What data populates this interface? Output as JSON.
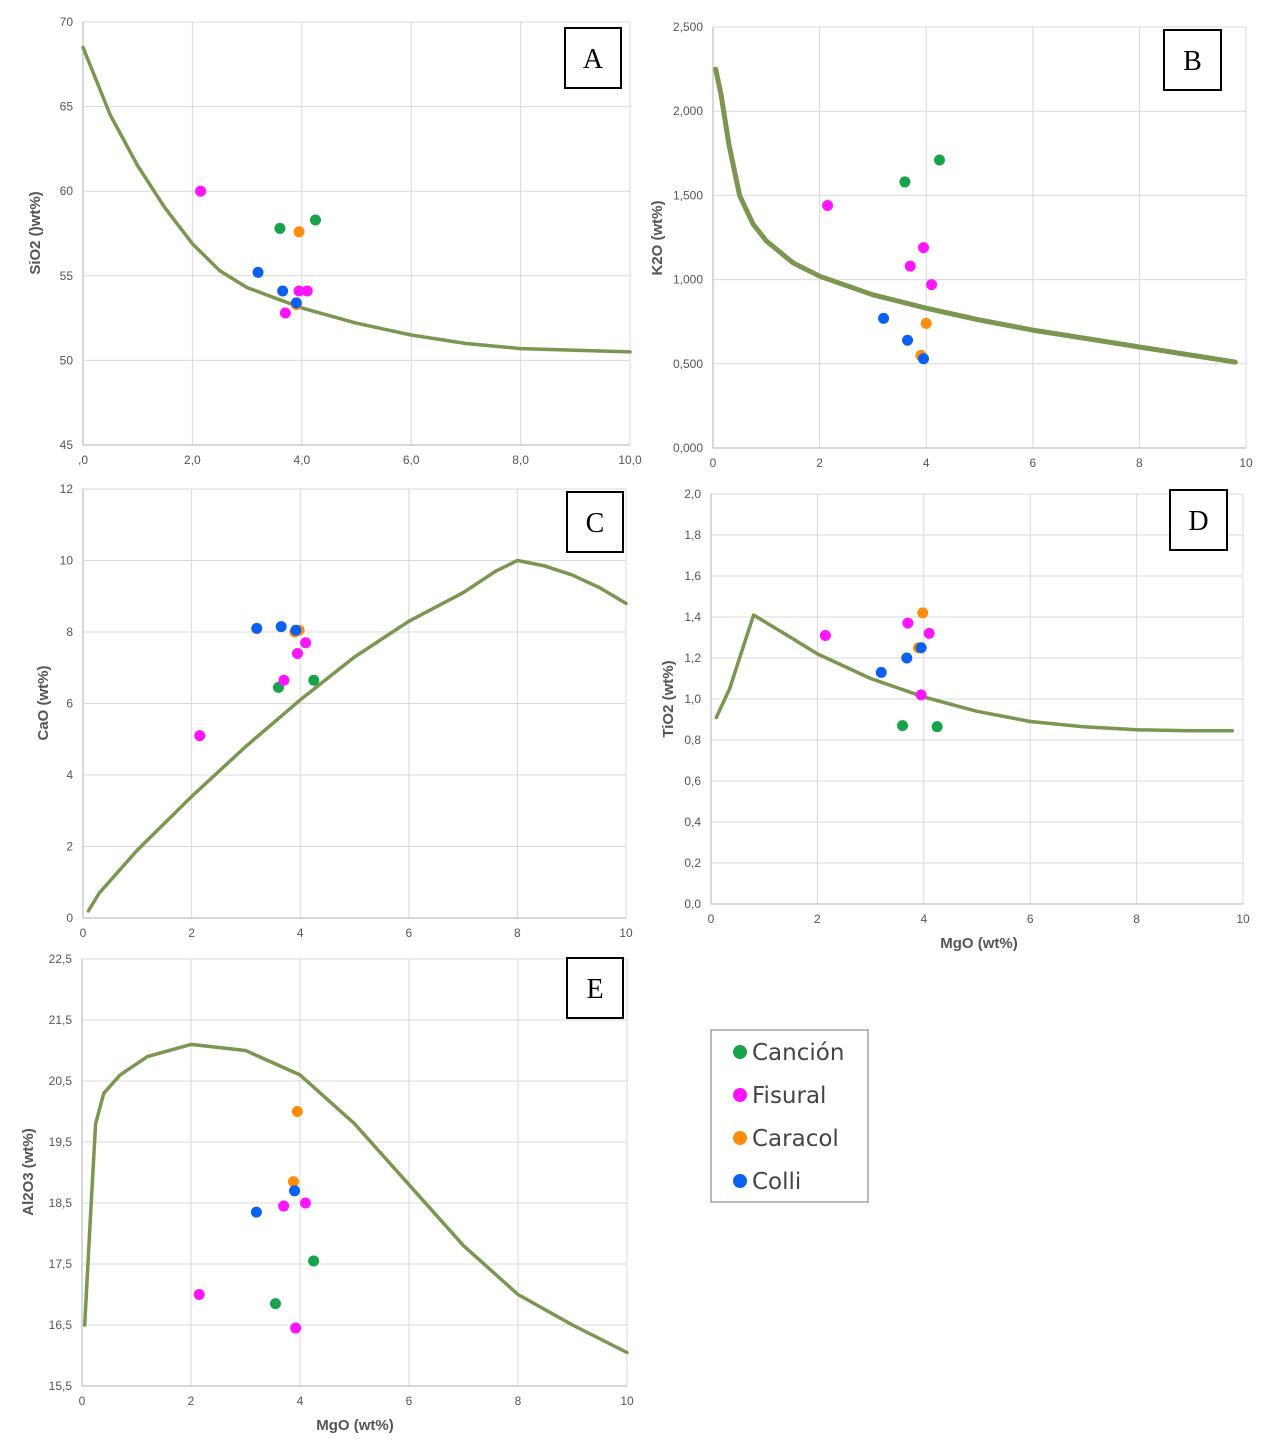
{
  "colors": {
    "curve": "#7a9650",
    "grid": "#d9d9d9",
    "axis": "#bfbfbf",
    "Canción": "#16a34a",
    "Fisural": "#ff14ff",
    "Caracol": "#ff8c0a",
    "Colli": "#0a60f0"
  },
  "legend": {
    "items": [
      "Canción",
      "Fisural",
      "Caracol",
      "Colli"
    ],
    "placement": "right of panel E"
  },
  "chart_data": [
    {
      "id": "A",
      "label": "A",
      "type": "scatter+line",
      "xlabel": "",
      "ylabel": "SiO2 ()wt%)",
      "xlim": [
        0,
        10
      ],
      "ylim": [
        45,
        70
      ],
      "xticks": [
        0,
        2,
        4,
        6,
        8,
        10
      ],
      "xtick_labels": [
        ",0",
        "2,0",
        "4,0",
        "6,0",
        "8,0",
        "10,0"
      ],
      "yticks": [
        45,
        50,
        55,
        60,
        65,
        70
      ],
      "ytick_labels": [
        "45",
        "50",
        "55",
        "60",
        "65",
        "70"
      ],
      "grid": true,
      "curve": [
        [
          0,
          68.5
        ],
        [
          0.5,
          64.5
        ],
        [
          1,
          61.5
        ],
        [
          1.5,
          59
        ],
        [
          2,
          56.9
        ],
        [
          2.5,
          55.3
        ],
        [
          3,
          54.3
        ],
        [
          3.5,
          53.7
        ],
        [
          4,
          53.1
        ],
        [
          5,
          52.2
        ],
        [
          6,
          51.5
        ],
        [
          7,
          51
        ],
        [
          8,
          50.7
        ],
        [
          9,
          50.6
        ],
        [
          10,
          50.5
        ]
      ],
      "series": [
        {
          "name": "Canción",
          "x": [
            3.6,
            4.25
          ],
          "y": [
            57.8,
            58.3
          ]
        },
        {
          "name": "Fisural",
          "x": [
            2.15,
            3.7,
            3.95,
            4.1
          ],
          "y": [
            60,
            52.8,
            54.1,
            54.1
          ]
        },
        {
          "name": "Caracol",
          "x": [
            3.9,
            3.95
          ],
          "y": [
            53.3,
            57.6
          ]
        },
        {
          "name": "Colli",
          "x": [
            3.2,
            3.65,
            3.9
          ],
          "y": [
            55.2,
            54.1,
            53.4
          ]
        }
      ]
    },
    {
      "id": "B",
      "label": "B",
      "type": "scatter+line",
      "xlabel": "",
      "ylabel": "K2O (wt%)",
      "xlim": [
        0,
        10
      ],
      "ylim": [
        0,
        2.5
      ],
      "xticks": [
        0,
        2,
        4,
        6,
        8,
        10
      ],
      "xtick_labels": [
        "0",
        "2",
        "4",
        "6",
        "8",
        "10"
      ],
      "yticks": [
        0,
        0.5,
        1,
        1.5,
        2,
        2.5
      ],
      "ytick_labels": [
        "0,000",
        "0,500",
        "1,000",
        "1,500",
        "2,000",
        "2,500"
      ],
      "grid": true,
      "curve": [
        [
          0.05,
          2.25
        ],
        [
          0.15,
          2.1
        ],
        [
          0.3,
          1.8
        ],
        [
          0.5,
          1.5
        ],
        [
          0.75,
          1.33
        ],
        [
          1,
          1.23
        ],
        [
          1.5,
          1.1
        ],
        [
          2,
          1.02
        ],
        [
          3,
          0.91
        ],
        [
          4,
          0.83
        ],
        [
          5,
          0.76
        ],
        [
          6,
          0.7
        ],
        [
          7,
          0.65
        ],
        [
          8,
          0.6
        ],
        [
          9,
          0.55
        ],
        [
          9.8,
          0.51
        ]
      ],
      "series": [
        {
          "name": "Canción",
          "x": [
            3.6,
            4.25
          ],
          "y": [
            1.58,
            1.71
          ]
        },
        {
          "name": "Fisural",
          "x": [
            2.15,
            3.7,
            3.95,
            4.1
          ],
          "y": [
            1.44,
            1.08,
            1.19,
            0.97
          ]
        },
        {
          "name": "Caracol",
          "x": [
            3.9,
            4.0
          ],
          "y": [
            0.55,
            0.74
          ]
        },
        {
          "name": "Colli",
          "x": [
            3.2,
            3.65,
            3.95
          ],
          "y": [
            0.77,
            0.64,
            0.53
          ]
        }
      ]
    },
    {
      "id": "C",
      "label": "C",
      "type": "scatter+line",
      "xlabel": "",
      "ylabel": "CaO (wt%)",
      "xlim": [
        0,
        10
      ],
      "ylim": [
        0,
        12
      ],
      "xticks": [
        0,
        2,
        4,
        6,
        8,
        10
      ],
      "xtick_labels": [
        "0",
        "2",
        "4",
        "6",
        "8",
        "10"
      ],
      "yticks": [
        0,
        2,
        4,
        6,
        8,
        10,
        12
      ],
      "ytick_labels": [
        "0",
        "2",
        "4",
        "6",
        "8",
        "10",
        "12"
      ],
      "grid": true,
      "curve": [
        [
          0.1,
          0.2
        ],
        [
          0.3,
          0.7
        ],
        [
          1,
          1.9
        ],
        [
          2,
          3.4
        ],
        [
          3,
          4.8
        ],
        [
          4,
          6.1
        ],
        [
          5,
          7.3
        ],
        [
          6,
          8.3
        ],
        [
          7,
          9.1
        ],
        [
          7.6,
          9.7
        ],
        [
          8,
          10
        ],
        [
          8.5,
          9.85
        ],
        [
          9,
          9.6
        ],
        [
          9.5,
          9.25
        ],
        [
          10,
          8.8
        ]
      ],
      "series": [
        {
          "name": "Canción",
          "x": [
            3.6,
            4.25
          ],
          "y": [
            6.45,
            6.65
          ]
        },
        {
          "name": "Fisural",
          "x": [
            2.15,
            3.7,
            3.95,
            4.1
          ],
          "y": [
            5.1,
            6.65,
            7.4,
            7.7
          ]
        },
        {
          "name": "Caracol",
          "x": [
            3.9,
            3.98
          ],
          "y": [
            8.0,
            8.05
          ]
        },
        {
          "name": "Colli",
          "x": [
            3.2,
            3.65,
            3.92
          ],
          "y": [
            8.1,
            8.15,
            8.05
          ]
        }
      ]
    },
    {
      "id": "D",
      "label": "D",
      "type": "scatter+line",
      "xlabel": "MgO (wt%)",
      "ylabel": "TiO2 (wt%)",
      "xlim": [
        0,
        10
      ],
      "ylim": [
        0,
        2
      ],
      "xticks": [
        0,
        2,
        4,
        6,
        8,
        10
      ],
      "xtick_labels": [
        "0",
        "2",
        "4",
        "6",
        "8",
        "10"
      ],
      "yticks": [
        0,
        0.2,
        0.4,
        0.6,
        0.8,
        1,
        1.2,
        1.4,
        1.6,
        1.8,
        2
      ],
      "ytick_labels": [
        "0,0",
        "0,2",
        "0,4",
        "0,6",
        "0,8",
        "1,0",
        "1,2",
        "1,4",
        "1,6",
        "1,8",
        "2,0"
      ],
      "grid": true,
      "curve": [
        [
          0.1,
          0.91
        ],
        [
          0.35,
          1.05
        ],
        [
          0.6,
          1.25
        ],
        [
          0.8,
          1.41
        ],
        [
          1.5,
          1.3
        ],
        [
          2,
          1.22
        ],
        [
          3,
          1.1
        ],
        [
          4,
          1.01
        ],
        [
          5,
          0.94
        ],
        [
          6,
          0.89
        ],
        [
          7,
          0.865
        ],
        [
          8,
          0.85
        ],
        [
          9,
          0.845
        ],
        [
          9.8,
          0.845
        ]
      ],
      "series": [
        {
          "name": "Canción",
          "x": [
            3.6,
            4.25
          ],
          "y": [
            0.87,
            0.865
          ]
        },
        {
          "name": "Fisural",
          "x": [
            2.15,
            3.7,
            3.95,
            4.1
          ],
          "y": [
            1.31,
            1.37,
            1.02,
            1.32
          ]
        },
        {
          "name": "Caracol",
          "x": [
            3.9,
            3.98
          ],
          "y": [
            1.25,
            1.42
          ]
        },
        {
          "name": "Colli",
          "x": [
            3.2,
            3.68,
            3.95
          ],
          "y": [
            1.13,
            1.2,
            1.25
          ]
        }
      ]
    },
    {
      "id": "E",
      "label": "E",
      "type": "scatter+line",
      "xlabel": "MgO (wt%)",
      "ylabel": "Al2O3 (wt%)",
      "xlim": [
        0,
        10
      ],
      "ylim": [
        15.5,
        22.5
      ],
      "xticks": [
        0,
        2,
        4,
        6,
        8,
        10
      ],
      "xtick_labels": [
        "0",
        "2",
        "4",
        "6",
        "8",
        "10"
      ],
      "yticks": [
        15.5,
        16.5,
        17.5,
        18.5,
        19.5,
        20.5,
        21.5,
        22.5
      ],
      "ytick_labels": [
        "15,5",
        "16,5",
        "17,5",
        "18,5",
        "19,5",
        "20,5",
        "21,5",
        "22,5"
      ],
      "grid": true,
      "curve": [
        [
          0.05,
          16.5
        ],
        [
          0.15,
          18.2
        ],
        [
          0.25,
          19.8
        ],
        [
          0.4,
          20.3
        ],
        [
          0.7,
          20.6
        ],
        [
          1.2,
          20.9
        ],
        [
          2,
          21.1
        ],
        [
          3,
          21.0
        ],
        [
          4,
          20.6
        ],
        [
          5,
          19.8
        ],
        [
          6,
          18.8
        ],
        [
          7,
          17.8
        ],
        [
          7.5,
          17.4
        ],
        [
          8,
          17.0
        ],
        [
          9,
          16.5
        ],
        [
          10,
          16.05
        ]
      ],
      "series": [
        {
          "name": "Canción",
          "x": [
            3.55,
            4.25
          ],
          "y": [
            16.85,
            17.55
          ]
        },
        {
          "name": "Fisural",
          "x": [
            2.15,
            3.7,
            3.92,
            4.1
          ],
          "y": [
            17.0,
            18.45,
            16.45,
            18.5
          ]
        },
        {
          "name": "Caracol",
          "x": [
            3.88,
            3.95
          ],
          "y": [
            18.85,
            20.0
          ]
        },
        {
          "name": "Colli",
          "x": [
            3.2,
            3.9
          ],
          "y": [
            18.35,
            18.7
          ]
        }
      ]
    }
  ]
}
